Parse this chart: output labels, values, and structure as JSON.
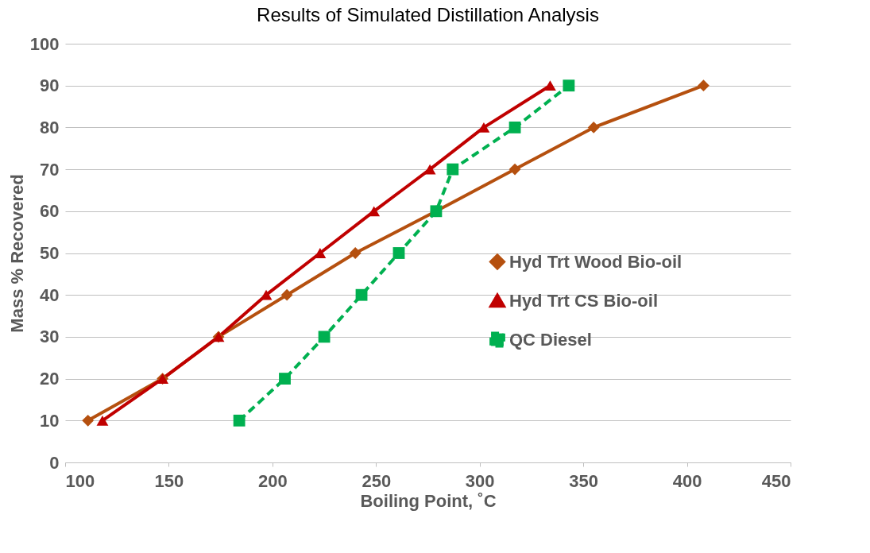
{
  "chart_data": {
    "type": "line",
    "title": "Results of Simulated Distillation Analysis",
    "xlabel": "Boiling Point, ˚C",
    "ylabel": "Mass % Recovered",
    "xlim": [
      100,
      450
    ],
    "xticks": [
      100,
      150,
      200,
      250,
      300,
      350,
      400,
      450
    ],
    "ylim": [
      0,
      100
    ],
    "yticks": [
      0,
      10,
      20,
      30,
      40,
      50,
      60,
      70,
      80,
      90,
      100
    ],
    "grid": "y",
    "legend": "right",
    "series": [
      {
        "name": "Hyd Trt Wood Bio-oil",
        "color": "#b5500f",
        "marker": "diamond",
        "line_style": "solid",
        "x": [
          111,
          147,
          174,
          207,
          240,
          279,
          317,
          355,
          408
        ],
        "values": [
          10,
          20,
          30,
          40,
          50,
          60,
          70,
          80,
          90
        ]
      },
      {
        "name": "Hyd Trt CS Bio-oil",
        "color": "#c00000",
        "marker": "triangle",
        "line_style": "solid",
        "x": [
          118,
          147,
          174,
          197,
          223,
          249,
          276,
          302,
          334
        ],
        "values": [
          10,
          20,
          30,
          40,
          50,
          60,
          70,
          80,
          90
        ]
      },
      {
        "name": "QC Diesel",
        "color": "#00b050",
        "marker": "square",
        "line_style": "dashed",
        "x": [
          184,
          206,
          225,
          243,
          261,
          279,
          287,
          317,
          343
        ],
        "values": [
          10,
          20,
          30,
          40,
          50,
          60,
          70,
          80,
          90
        ]
      }
    ]
  }
}
